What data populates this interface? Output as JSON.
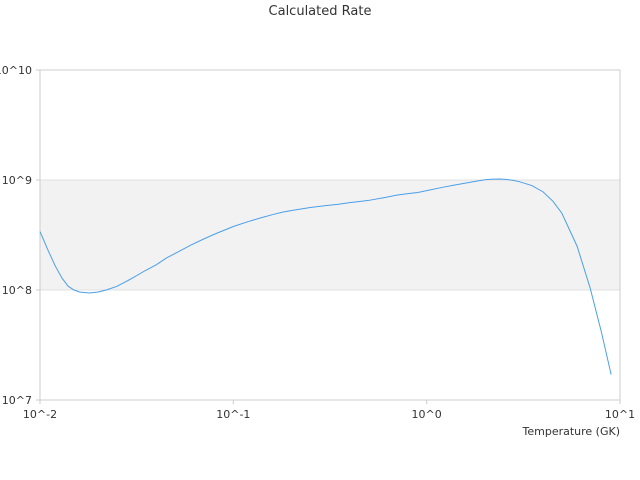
{
  "chart_data": {
    "type": "line",
    "title": "Calculated Rate",
    "xlabel": "Temperature (GK)",
    "ylabel": "",
    "x_scale": "log",
    "y_scale": "log",
    "xlim": [
      0.01,
      10
    ],
    "ylim": [
      10000000,
      10000000000
    ],
    "x_tick_labels": [
      "10^-2",
      "10^-1",
      "10^0",
      "10^1"
    ],
    "y_tick_labels": [
      "10^7",
      "10^8",
      "10^9",
      "10^10"
    ],
    "grid": false,
    "shaded_band": {
      "y_from": 100000000,
      "y_to": 1000000000,
      "color": "#f2f2f2"
    },
    "colors": {
      "series": "#4a9fe8",
      "axis": "#cccccc"
    },
    "series": [
      {
        "x": [
          0.01,
          0.011,
          0.012,
          0.013,
          0.014,
          0.015,
          0.016,
          0.018,
          0.02,
          0.022,
          0.025,
          0.028,
          0.03,
          0.035,
          0.04,
          0.045,
          0.05,
          0.06,
          0.07,
          0.08,
          0.09,
          0.1,
          0.12,
          0.14,
          0.16,
          0.18,
          0.2,
          0.25,
          0.3,
          0.35,
          0.4,
          0.45,
          0.5,
          0.6,
          0.7,
          0.8,
          0.9,
          1.0,
          1.2,
          1.4,
          1.6,
          1.8,
          2.0,
          2.2,
          2.4,
          2.6,
          2.8,
          3.0,
          3.5,
          4.0,
          4.5,
          5.0,
          6.0,
          7.0,
          8.0,
          9.0
        ],
        "y": [
          340000000,
          230000000,
          165000000,
          128000000,
          108000000,
          100000000,
          96000000,
          94000000,
          96000000,
          100000000,
          108000000,
          120000000,
          128000000,
          150000000,
          170000000,
          195000000,
          215000000,
          255000000,
          290000000,
          322000000,
          350000000,
          378000000,
          420000000,
          455000000,
          485000000,
          510000000,
          528000000,
          562000000,
          585000000,
          602000000,
          622000000,
          638000000,
          652000000,
          690000000,
          728000000,
          752000000,
          770000000,
          800000000,
          856000000,
          900000000,
          940000000,
          975000000,
          1005000000,
          1018000000,
          1020000000,
          1010000000,
          992000000,
          968000000,
          890000000,
          780000000,
          640000000,
          500000000,
          250000000,
          105000000,
          42000000,
          17000000
        ]
      }
    ]
  }
}
